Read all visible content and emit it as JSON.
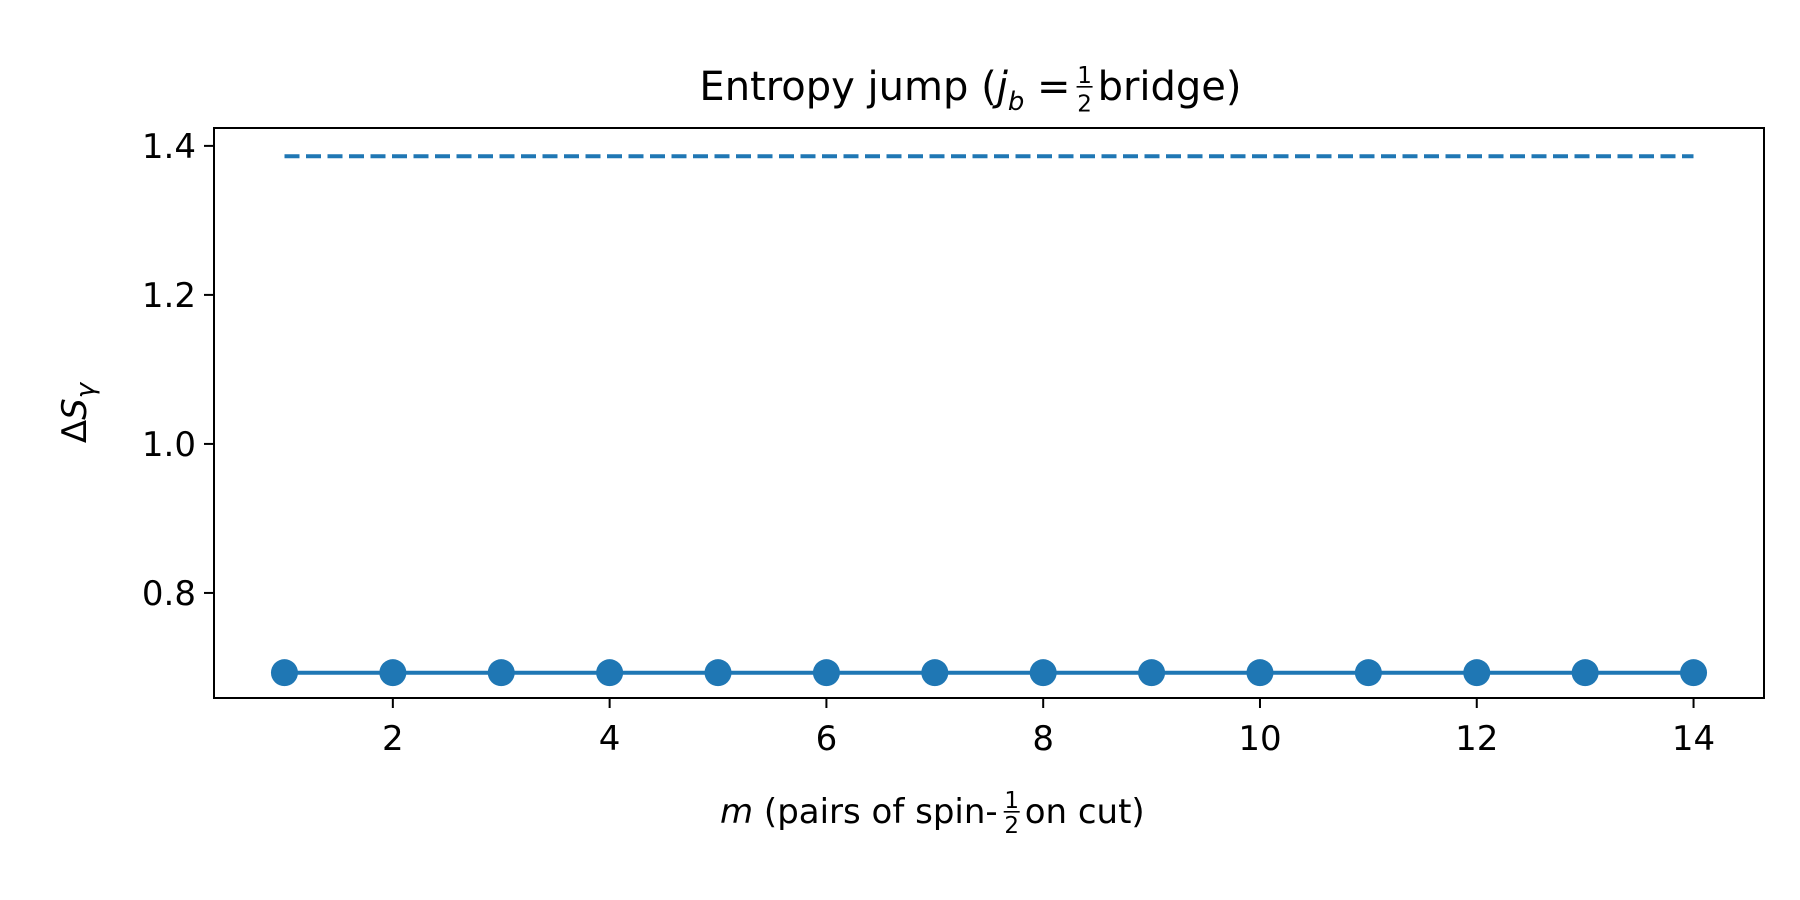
{
  "chart_data": {
    "type": "line",
    "title": {
      "before": "Entropy jump  (",
      "var": "j",
      "sub": "b",
      "eq": " = ",
      "num": "1",
      "den": "2",
      "after": " bridge)"
    },
    "xlabel": {
      "var": "m",
      "before": "  (pairs of spin-",
      "num": "1",
      "den": "2",
      "after": " on cut)"
    },
    "ylabel": {
      "prefix": "Δ",
      "var": "S",
      "sub": "γ"
    },
    "xlim": [
      0.35,
      14.65
    ],
    "ylim": [
      0.659,
      1.424
    ],
    "xticks": [
      2,
      4,
      6,
      8,
      10,
      12,
      14
    ],
    "xtick_labels": [
      "2",
      "4",
      "6",
      "8",
      "10",
      "12",
      "14"
    ],
    "yticks": [
      0.8,
      1.0,
      1.2,
      1.4
    ],
    "ytick_labels": [
      "0.8",
      "1.0",
      "1.2",
      "1.4"
    ],
    "grid": false,
    "series": [
      {
        "style": "solid-markers",
        "color": "#1f77b4",
        "x": [
          1,
          2,
          3,
          4,
          5,
          6,
          7,
          8,
          9,
          10,
          11,
          12,
          13,
          14
        ],
        "y": [
          0.693,
          0.693,
          0.693,
          0.693,
          0.693,
          0.693,
          0.693,
          0.693,
          0.693,
          0.693,
          0.693,
          0.693,
          0.693,
          0.693
        ]
      },
      {
        "style": "dashed",
        "color": "#1f77b4",
        "x": [
          1,
          14
        ],
        "y": [
          1.386,
          1.386
        ]
      }
    ]
  }
}
